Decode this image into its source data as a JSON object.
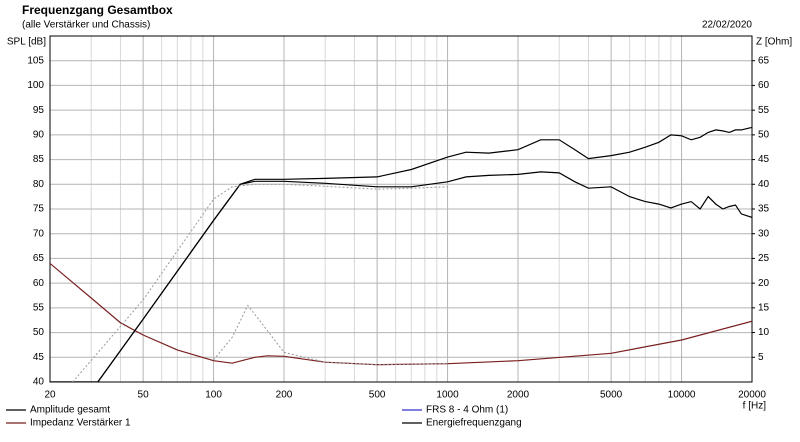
{
  "chart_data": {
    "type": "line",
    "title": "Frequenzgang Gesamtbox",
    "subtitle": "(alle Verstärker und Chassis)",
    "date": "22/02/2020",
    "y_label": "SPL [dB]",
    "y2_label": "Z [Ohm]",
    "x_label": "f [Hz]",
    "log_x": true,
    "grid": true,
    "xlim": [
      20,
      20000
    ],
    "xticks": [
      20,
      50,
      100,
      200,
      500,
      1000,
      2000,
      5000,
      10000,
      20000
    ],
    "xminorticks": [
      30,
      40,
      60,
      70,
      80,
      90,
      300,
      400,
      600,
      700,
      800,
      900,
      3000,
      4000,
      6000,
      7000,
      8000,
      9000
    ],
    "ylim": [
      40,
      110
    ],
    "yticks": [
      40,
      45,
      50,
      55,
      60,
      65,
      70,
      75,
      80,
      85,
      90,
      95,
      100,
      105
    ],
    "y2lim": [
      0,
      70
    ],
    "y2ticks": [
      5,
      10,
      15,
      20,
      25,
      30,
      35,
      40,
      45,
      50,
      55,
      60,
      65
    ],
    "series": [
      {
        "name": "Amplitude gesamt",
        "color": "#000000",
        "x": [
          20,
          32,
          50,
          100,
          130,
          150,
          200,
          300,
          500,
          700,
          1000,
          1200,
          1500,
          2000,
          2500,
          3000,
          3500,
          4000,
          5000,
          6000,
          7000,
          8000,
          9000,
          10000,
          11000,
          12000,
          13000,
          14000,
          15000,
          16000,
          17000,
          18000,
          20000
        ],
        "values": [
          40,
          40,
          52.7,
          72.7,
          80,
          80.6,
          80.6,
          80.2,
          79.5,
          79.5,
          80.5,
          81.5,
          81.8,
          82,
          82.5,
          82.3,
          80.5,
          79.2,
          79.5,
          77.5,
          76.5,
          76,
          75.2,
          76,
          76.5,
          75,
          77.5,
          76,
          75,
          75.5,
          75.8,
          74,
          73.3
        ]
      },
      {
        "name": "Impedanz Verstärker 1",
        "color": "#7a1f1f",
        "axis": "y2",
        "x": [
          20,
          30,
          40,
          50,
          70,
          100,
          120,
          150,
          170,
          200,
          300,
          500,
          1000,
          2000,
          5000,
          10000,
          20000
        ],
        "values": [
          24,
          17,
          12,
          9.5,
          6.5,
          4.3,
          3.8,
          5,
          5.3,
          5.2,
          4,
          3.5,
          3.7,
          4.3,
          5.8,
          8.5,
          12.3
        ]
      },
      {
        "name": "FRS 8 - 4 Ohm (1)",
        "color": "#3333cc",
        "x": [],
        "values": []
      },
      {
        "name": "Energiefrequenzgang",
        "color": "#000000",
        "x": [
          20,
          32,
          50,
          100,
          130,
          150,
          200,
          300,
          500,
          700,
          1000,
          1200,
          1500,
          2000,
          2500,
          3000,
          3500,
          4000,
          5000,
          6000,
          7000,
          8000,
          9000,
          10000,
          11000,
          12000,
          13000,
          14000,
          15000,
          16000,
          17000,
          18000,
          20000
        ],
        "values": [
          40,
          40,
          52.7,
          72.7,
          80,
          81,
          81,
          81.2,
          81.5,
          83,
          85.5,
          86.5,
          86.3,
          87,
          89,
          89,
          87,
          85.2,
          85.8,
          86.5,
          87.5,
          88.5,
          90,
          89.8,
          89,
          89.5,
          90.5,
          91,
          90.8,
          90.5,
          91,
          91,
          91.5
        ]
      },
      {
        "color": "#999999",
        "dashed": true,
        "x": [
          25,
          50,
          100,
          120,
          150,
          200,
          300,
          500,
          700,
          1000
        ],
        "values": [
          40,
          56.6,
          77,
          79.5,
          80,
          80,
          79.6,
          79,
          79.2,
          79.5
        ]
      },
      {
        "color": "#999999",
        "dashed": true,
        "axis": "y2",
        "x": [
          100,
          120,
          140,
          160,
          200,
          300,
          500,
          1000
        ],
        "values": [
          4.5,
          9,
          15.5,
          12,
          6,
          4,
          3.5,
          3.7
        ]
      }
    ]
  }
}
